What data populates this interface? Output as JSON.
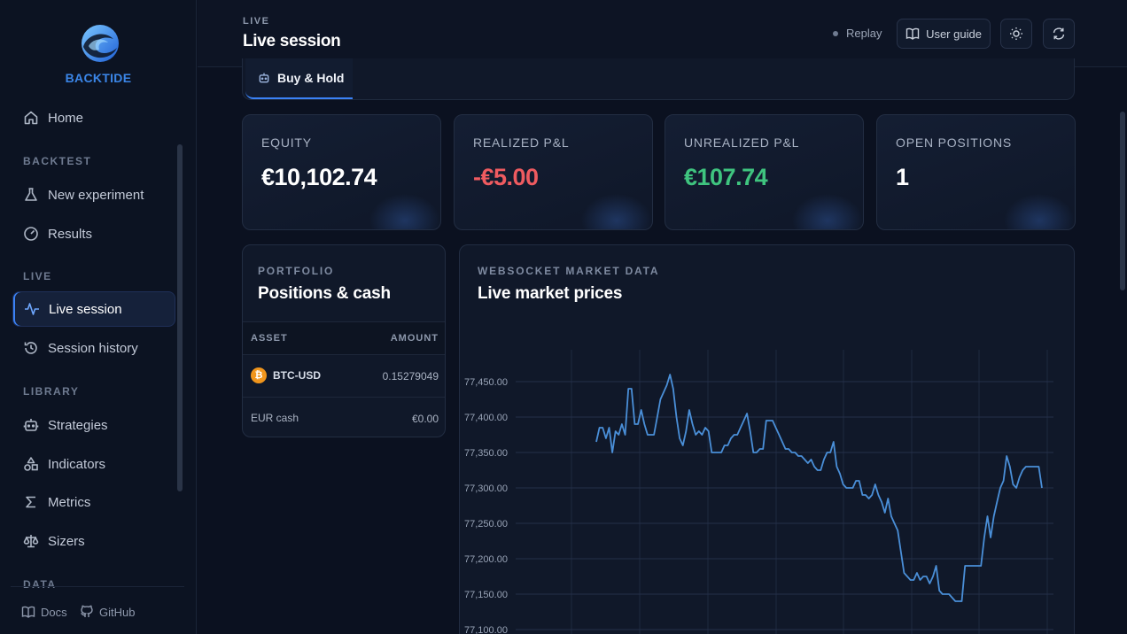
{
  "brand": {
    "name": "BACKTIDE"
  },
  "sidebar": {
    "home": "Home",
    "sections": {
      "backtest": "BACKTEST",
      "live": "LIVE",
      "library": "LIBRARY",
      "data": "DATA"
    },
    "items": {
      "new_experiment": "New experiment",
      "results": "Results",
      "live_session": "Live session",
      "session_history": "Session history",
      "strategies": "Strategies",
      "indicators": "Indicators",
      "metrics": "Metrics",
      "sizers": "Sizers"
    },
    "active": "live_session",
    "footer": {
      "docs": "Docs",
      "github": "GitHub"
    }
  },
  "header": {
    "eyebrow": "LIVE",
    "title": "Live session",
    "replay": "Replay",
    "user_guide": "User guide"
  },
  "tabs": {
    "active": "Buy & Hold"
  },
  "kpis": [
    {
      "label": "EQUITY",
      "value": "€10,102.74",
      "color": "#ffffff"
    },
    {
      "label": "REALIZED P&L",
      "value": "-€5.00",
      "color": "#ef5b60"
    },
    {
      "label": "UNREALIZED P&L",
      "value": "€107.74",
      "color": "#3fc47f"
    },
    {
      "label": "OPEN POSITIONS",
      "value": "1",
      "color": "#ffffff"
    }
  ],
  "portfolio": {
    "eyebrow": "PORTFOLIO",
    "title": "Positions & cash",
    "headers": {
      "asset": "ASSET",
      "amount": "AMOUNT"
    },
    "rows": [
      {
        "asset": "BTC-USD",
        "amount": "0.15279049",
        "icon": "bitcoin-icon"
      },
      {
        "asset": "EUR cash",
        "amount": "€0.00"
      }
    ]
  },
  "market": {
    "eyebrow": "WEBSOCKET MARKET DATA",
    "title": "Live market prices"
  },
  "chart_data": {
    "type": "line",
    "title": "",
    "xlabel": "",
    "ylabel": "",
    "ylim": [
      77100,
      77450
    ],
    "yticks": [
      "77,100.00",
      "77,150.00",
      "77,200.00",
      "77,250.00",
      "77,300.00",
      "77,350.00",
      "77,400.00",
      "77,450.00"
    ],
    "grid": true,
    "line_color": "#4a8fd8",
    "series": [
      {
        "values": [
          77365,
          77385,
          77385,
          77370,
          77385,
          77350,
          77380,
          77375,
          77390,
          77375,
          77440,
          77440,
          77390,
          77390,
          77410,
          77390,
          77375,
          77375,
          77375,
          77400,
          77425,
          77435,
          77445,
          77460,
          77440,
          77400,
          77370,
          77360,
          77380,
          77410,
          77390,
          77375,
          77380,
          77375,
          77385,
          77380,
          77350,
          77350,
          77350,
          77350,
          77360,
          77360,
          77370,
          77375,
          77375,
          77385,
          77395,
          77405,
          77380,
          77350,
          77350,
          77355,
          77355,
          77395,
          77395,
          77395,
          77385,
          77375,
          77365,
          77355,
          77355,
          77350,
          77350,
          77345,
          77345,
          77340,
          77335,
          77340,
          77330,
          77325,
          77325,
          77340,
          77350,
          77350,
          77365,
          77330,
          77320,
          77305,
          77300,
          77300,
          77300,
          77310,
          77310,
          77290,
          77290,
          77285,
          77290,
          77305,
          77290,
          77280,
          77265,
          77285,
          77260,
          77250,
          77240,
          77210,
          77180,
          77175,
          77170,
          77170,
          77180,
          77170,
          77175,
          77175,
          77165,
          77175,
          77190,
          77155,
          77150,
          77150,
          77150,
          77145,
          77140,
          77140,
          77140,
          77190,
          77190,
          77190,
          77190,
          77190,
          77190,
          77230,
          77260,
          77230,
          77260,
          77280,
          77300,
          77310,
          77345,
          77330,
          77305,
          77300,
          77315,
          77325,
          77330,
          77330,
          77330,
          77330,
          77330,
          77300
        ]
      }
    ]
  }
}
